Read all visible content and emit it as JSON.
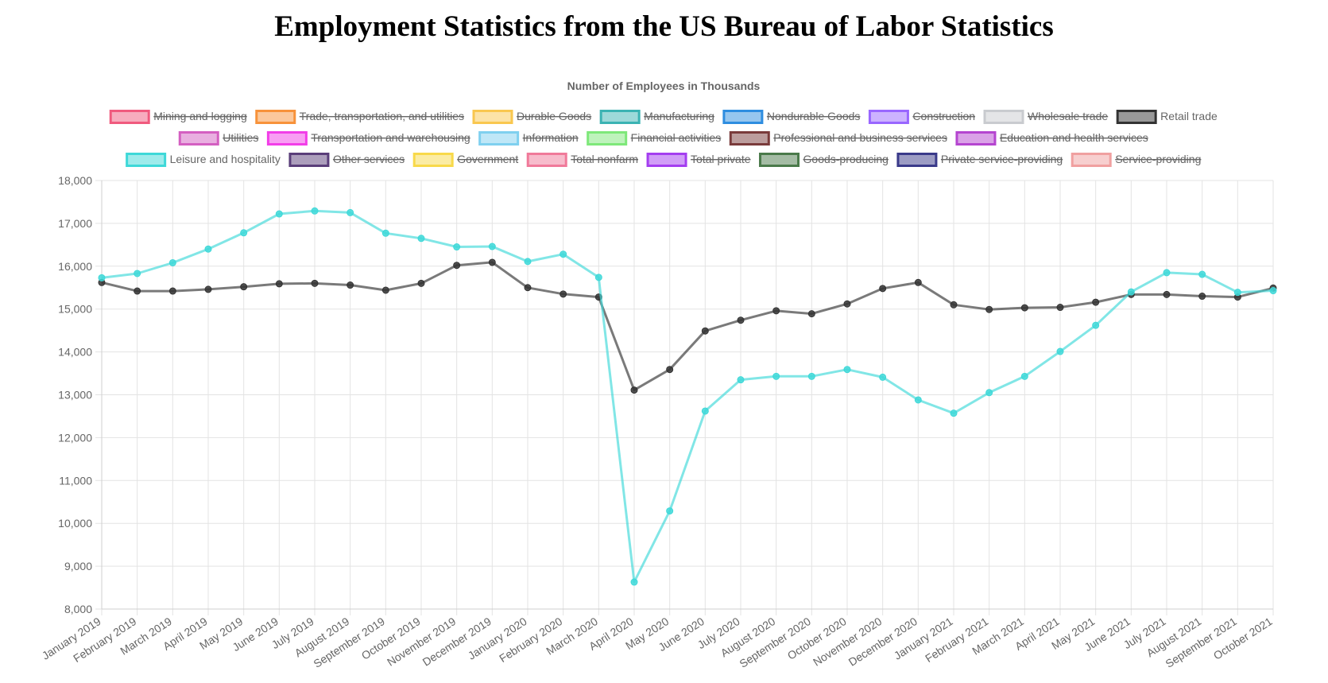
{
  "page": {
    "title": "Employment Statistics from the US Bureau of Labor Statistics"
  },
  "chart_data": {
    "type": "line",
    "title": "Number of Employees in Thousands",
    "ylim": [
      8000,
      18000
    ],
    "yticks": [
      "8,000",
      "9,000",
      "10,000",
      "11,000",
      "12,000",
      "13,000",
      "14,000",
      "15,000",
      "16,000",
      "17,000",
      "18,000"
    ],
    "grid": true,
    "legend_position": "top",
    "categories": [
      "January 2019",
      "February 2019",
      "March 2019",
      "April 2019",
      "May 2019",
      "June 2019",
      "July 2019",
      "August 2019",
      "September 2019",
      "October 2019",
      "November 2019",
      "December 2019",
      "January 2020",
      "February 2020",
      "March 2020",
      "April 2020",
      "May 2020",
      "June 2020",
      "July 2020",
      "August 2020",
      "September 2020",
      "October 2020",
      "November 2020",
      "December 2020",
      "January 2021",
      "February 2021",
      "March 2021",
      "April 2021",
      "May 2021",
      "June 2021",
      "July 2021",
      "August 2021",
      "September 2021",
      "October 2021"
    ],
    "series": [
      {
        "name": "Mining and logging",
        "color": "#f05a7e",
        "hidden": true
      },
      {
        "name": "Trade, transportation, and utilities",
        "color": "#f7923a",
        "hidden": true
      },
      {
        "name": "Durable Goods",
        "color": "#f9c74f",
        "hidden": true
      },
      {
        "name": "Manufacturing",
        "color": "#3bb3b3",
        "hidden": true
      },
      {
        "name": "Nondurable Goods",
        "color": "#2e8de0",
        "hidden": true
      },
      {
        "name": "Construction",
        "color": "#9966ff",
        "hidden": true
      },
      {
        "name": "Wholesale trade",
        "color": "#c9cbcf",
        "hidden": true
      },
      {
        "name": "Retail trade",
        "color": "#333333",
        "hidden": false,
        "values": [
          15620,
          15420,
          15420,
          15460,
          15520,
          15590,
          15600,
          15560,
          15440,
          15600,
          16020,
          16090,
          15500,
          15350,
          15280,
          13110,
          13590,
          14490,
          14740,
          14960,
          14890,
          15120,
          15480,
          15620,
          15100,
          14990,
          15030,
          15040,
          15160,
          15340,
          15340,
          15300,
          15280,
          15490
        ]
      },
      {
        "name": "Utilities",
        "color": "#d45fc1",
        "hidden": true
      },
      {
        "name": "Transportation and warehousing",
        "color": "#f23ee8",
        "hidden": true
      },
      {
        "name": "Information",
        "color": "#7fd0ef",
        "hidden": true
      },
      {
        "name": "Financial activities",
        "color": "#7ee87a",
        "hidden": true
      },
      {
        "name": "Professional and business services",
        "color": "#7a3b3b",
        "hidden": true
      },
      {
        "name": "Education and health services",
        "color": "#b545d0",
        "hidden": true
      },
      {
        "name": "Leisure and hospitality",
        "color": "#3ed8d8",
        "hidden": false,
        "values": [
          15730,
          15830,
          16080,
          16400,
          16780,
          17220,
          17290,
          17250,
          16770,
          16650,
          16450,
          16460,
          16110,
          16280,
          15740,
          8630,
          10290,
          12620,
          13350,
          13430,
          13430,
          13590,
          13410,
          12880,
          12570,
          13050,
          13430,
          14010,
          14620,
          15400,
          15850,
          15810,
          15390,
          15430
        ]
      },
      {
        "name": "Other services",
        "color": "#5a3e7a",
        "hidden": true
      },
      {
        "name": "Government",
        "color": "#f8d94a",
        "hidden": true
      },
      {
        "name": "Total nonfarm",
        "color": "#f07a9a",
        "hidden": true
      },
      {
        "name": "Total private",
        "color": "#a43ef0",
        "hidden": true
      },
      {
        "name": "Goods-producing",
        "color": "#4a7a4a",
        "hidden": true
      },
      {
        "name": "Private service-providing",
        "color": "#3a3a8a",
        "hidden": true
      },
      {
        "name": "Service-providing",
        "color": "#f0a0a0",
        "hidden": true
      }
    ]
  }
}
